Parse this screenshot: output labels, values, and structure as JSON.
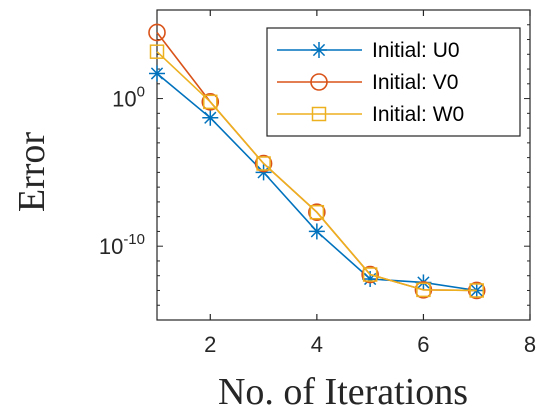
{
  "chart_data": {
    "type": "line",
    "xlabel": "No. of Iterations",
    "ylabel": "Error",
    "x_ticks": [
      2,
      4,
      6,
      8
    ],
    "y_ticks": [
      {
        "value": 1,
        "base": "10",
        "exp": "0"
      },
      {
        "value": 1e-10,
        "base": "10",
        "exp": "-10"
      }
    ],
    "xlim": [
      1,
      8
    ],
    "ylim": [
      1e-15,
      1000000.0
    ],
    "log_y": true,
    "grid": false,
    "legend_position": "top-right",
    "series": [
      {
        "name": "Initial: U0",
        "color": "#0072BD",
        "marker": "asterisk",
        "x": [
          1,
          2,
          3,
          4,
          5,
          6,
          7
        ],
        "y": [
          50,
          0.05,
          1e-05,
          1e-09,
          6e-13,
          3.5e-13,
          1e-13
        ]
      },
      {
        "name": "Initial: V0",
        "color": "#D95319",
        "marker": "circle",
        "x": [
          1,
          2,
          3,
          4,
          5,
          6,
          7
        ],
        "y": [
          30000,
          0.6,
          4e-05,
          2e-08,
          1.2e-12,
          1.1e-13,
          1e-13
        ]
      },
      {
        "name": "Initial: W0",
        "color": "#EDB120",
        "marker": "square",
        "x": [
          1,
          2,
          3,
          4,
          5,
          6,
          7
        ],
        "y": [
          1500,
          0.6,
          4e-05,
          2e-08,
          1.2e-12,
          1.1e-13,
          1e-13
        ]
      }
    ]
  }
}
